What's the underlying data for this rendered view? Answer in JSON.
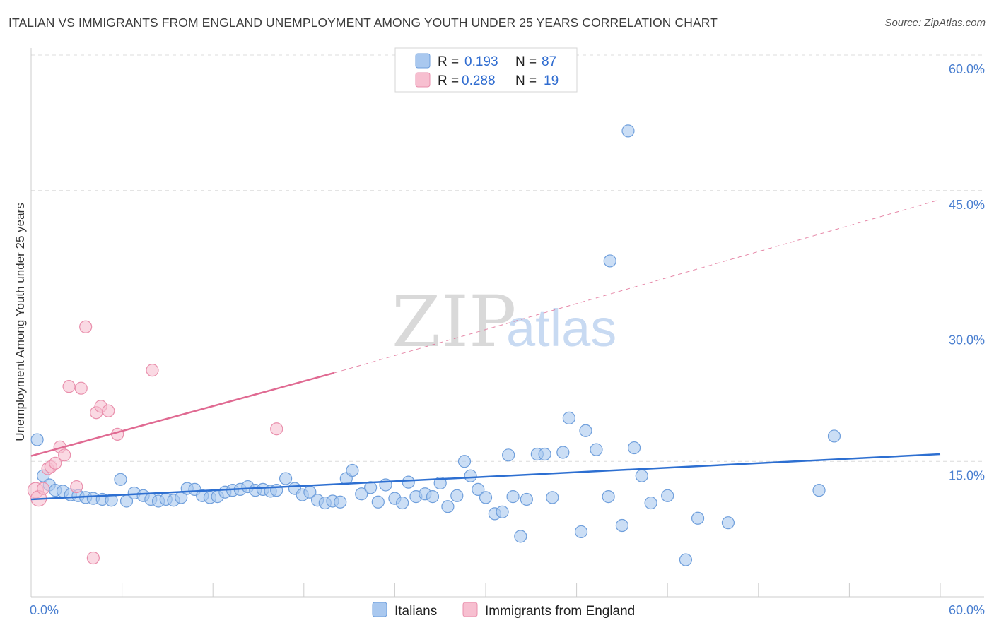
{
  "title": "ITALIAN VS IMMIGRANTS FROM ENGLAND UNEMPLOYMENT AMONG YOUTH UNDER 25 YEARS CORRELATION CHART",
  "source": "Source: ZipAtlas.com",
  "watermark": {
    "zip": "ZIP",
    "atlas": "atlas"
  },
  "legend": {
    "rows": [
      {
        "r_label": "R =",
        "r_value": "0.193",
        "n_label": "N =",
        "n_value": "87"
      },
      {
        "r_label": "R =",
        "r_value": "0.288",
        "n_label": "N =",
        "n_value": "19"
      }
    ]
  },
  "colors": {
    "italians_fill": "#a9c8ef",
    "italians_stroke": "#6f9fdc",
    "italians_line": "#2d6fd1",
    "england_fill": "#f7bfd0",
    "england_stroke": "#e98fac",
    "england_line": "#e06a92",
    "grid": "#dcdcdc",
    "axis": "#cccccc"
  },
  "chart_data": {
    "type": "scatter",
    "title": "ITALIAN VS IMMIGRANTS FROM ENGLAND UNEMPLOYMENT AMONG YOUTH UNDER 25 YEARS CORRELATION CHART",
    "xlabel": "",
    "ylabel": "Unemployment Among Youth under 25 years",
    "xlim": [
      0,
      60
    ],
    "ylim": [
      0,
      60
    ],
    "x_tick_labels": [
      "0.0%",
      "60.0%"
    ],
    "y_ticks": [
      15,
      30,
      45,
      60
    ],
    "y_tick_labels": [
      "15.0%",
      "30.0%",
      "45.0%",
      "60.0%"
    ],
    "grid": true,
    "legend_position": "top-center",
    "series": [
      {
        "name": "Italians",
        "r": 0.193,
        "n": 87,
        "trend": {
          "x0": 0,
          "y0": 10.8,
          "x1": 60,
          "y1": 15.8,
          "style": "solid"
        },
        "points": [
          [
            0.4,
            17.4
          ],
          [
            0.8,
            13.4
          ],
          [
            1.2,
            12.4
          ],
          [
            1.6,
            11.8
          ],
          [
            2.1,
            11.7
          ],
          [
            2.6,
            11.3
          ],
          [
            3.1,
            11.2
          ],
          [
            3.6,
            11.0
          ],
          [
            4.1,
            10.9
          ],
          [
            4.7,
            10.8
          ],
          [
            5.3,
            10.7
          ],
          [
            5.9,
            13.0
          ],
          [
            6.3,
            10.6
          ],
          [
            6.8,
            11.5
          ],
          [
            7.4,
            11.2
          ],
          [
            7.9,
            10.8
          ],
          [
            8.4,
            10.6
          ],
          [
            8.9,
            10.8
          ],
          [
            9.4,
            10.7
          ],
          [
            9.9,
            11.0
          ],
          [
            10.3,
            12.0
          ],
          [
            10.8,
            11.9
          ],
          [
            11.3,
            11.2
          ],
          [
            11.8,
            11.0
          ],
          [
            12.3,
            11.1
          ],
          [
            12.8,
            11.6
          ],
          [
            13.3,
            11.8
          ],
          [
            13.8,
            11.9
          ],
          [
            14.3,
            12.2
          ],
          [
            14.8,
            11.8
          ],
          [
            15.3,
            11.9
          ],
          [
            15.8,
            11.7
          ],
          [
            16.2,
            11.8
          ],
          [
            16.8,
            13.1
          ],
          [
            17.4,
            12.0
          ],
          [
            17.9,
            11.3
          ],
          [
            18.4,
            11.6
          ],
          [
            18.9,
            10.7
          ],
          [
            19.4,
            10.4
          ],
          [
            19.9,
            10.6
          ],
          [
            20.4,
            10.5
          ],
          [
            20.8,
            13.1
          ],
          [
            21.2,
            14.0
          ],
          [
            21.8,
            11.4
          ],
          [
            22.4,
            12.1
          ],
          [
            22.9,
            10.5
          ],
          [
            23.4,
            12.4
          ],
          [
            24.0,
            10.9
          ],
          [
            24.5,
            10.4
          ],
          [
            24.9,
            12.7
          ],
          [
            25.4,
            11.1
          ],
          [
            26.0,
            11.4
          ],
          [
            26.5,
            11.1
          ],
          [
            27.0,
            12.6
          ],
          [
            27.5,
            10.0
          ],
          [
            28.1,
            11.2
          ],
          [
            28.6,
            15.0
          ],
          [
            29.0,
            13.4
          ],
          [
            29.5,
            11.9
          ],
          [
            30.0,
            11.0
          ],
          [
            30.6,
            9.2
          ],
          [
            31.1,
            9.4
          ],
          [
            31.5,
            15.7
          ],
          [
            31.8,
            11.1
          ],
          [
            32.3,
            6.7
          ],
          [
            32.7,
            10.8
          ],
          [
            33.4,
            15.8
          ],
          [
            33.9,
            15.8
          ],
          [
            34.4,
            11.0
          ],
          [
            35.1,
            16.0
          ],
          [
            35.5,
            19.8
          ],
          [
            36.3,
            7.2
          ],
          [
            36.6,
            18.4
          ],
          [
            37.3,
            16.3
          ],
          [
            38.1,
            11.1
          ],
          [
            38.2,
            37.2
          ],
          [
            39.0,
            7.9
          ],
          [
            39.4,
            51.6
          ],
          [
            39.8,
            16.5
          ],
          [
            40.3,
            13.4
          ],
          [
            40.9,
            10.4
          ],
          [
            42.0,
            11.2
          ],
          [
            43.2,
            4.1
          ],
          [
            44.0,
            8.7
          ],
          [
            46.0,
            8.2
          ],
          [
            52.0,
            11.8
          ],
          [
            53.0,
            17.8
          ]
        ]
      },
      {
        "name": "Immigrants from England",
        "r": 0.288,
        "n": 19,
        "trend": {
          "x0": 0,
          "y0": 15.6,
          "x1": 20,
          "y1": 24.8,
          "x1_dashed": 60,
          "y1_dashed": 44.0,
          "style": "solid-then-dashed"
        },
        "points": [
          [
            0.3,
            11.8
          ],
          [
            0.5,
            10.9
          ],
          [
            0.8,
            12.0
          ],
          [
            1.1,
            14.2
          ],
          [
            1.3,
            14.4
          ],
          [
            1.6,
            14.8
          ],
          [
            1.9,
            16.6
          ],
          [
            2.2,
            15.7
          ],
          [
            2.5,
            23.3
          ],
          [
            3.0,
            12.2
          ],
          [
            3.3,
            23.1
          ],
          [
            3.6,
            29.9
          ],
          [
            4.1,
            4.3
          ],
          [
            4.3,
            20.4
          ],
          [
            4.6,
            21.1
          ],
          [
            5.1,
            20.6
          ],
          [
            5.7,
            18.0
          ],
          [
            8.0,
            25.1
          ],
          [
            16.2,
            18.6
          ]
        ]
      }
    ]
  },
  "bottom_legend": [
    "Italians",
    "Immigrants from England"
  ]
}
